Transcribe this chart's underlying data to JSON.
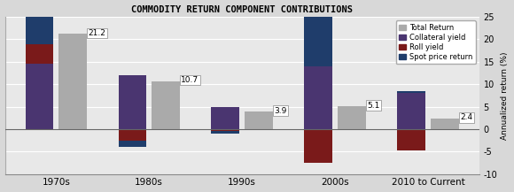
{
  "title": "COMMODITY RETURN COMPONENT CONTRIBUTIONS",
  "categories": [
    "1970s",
    "1980s",
    "1990s",
    "2000s",
    "2010 to Current"
  ],
  "ylabel": "Annualized return (%)",
  "ylim": [
    -10,
    25
  ],
  "yticks": [
    -10,
    -5,
    0,
    5,
    10,
    15,
    20,
    25
  ],
  "total_return": [
    21.2,
    10.7,
    3.9,
    5.1,
    2.4
  ],
  "collateral_yield": [
    14.5,
    12.0,
    5.0,
    14.0,
    8.0
  ],
  "roll_yield": [
    4.5,
    -2.5,
    -0.5,
    -7.5,
    -4.8
  ],
  "spot_price": [
    9.0,
    -1.5,
    -0.5,
    11.0,
    0.5
  ],
  "color_total": "#aaaaaa",
  "color_collateral": "#4a3570",
  "color_roll": "#7a1a1a",
  "color_spot": "#1f3d6b",
  "bar_width": 0.3,
  "background_color": "#d8d8d8",
  "plot_bg_color": "#e8e8e8",
  "legend_labels": [
    "Total Return",
    "Collateral yield",
    "Roll yield",
    "Spot price return"
  ]
}
